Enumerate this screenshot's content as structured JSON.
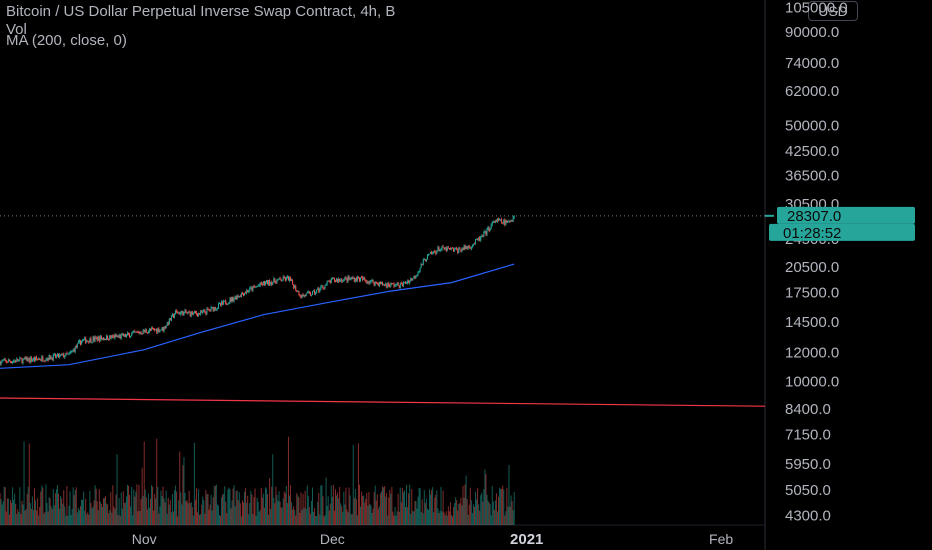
{
  "header": {
    "title": "Bitcoin / US Dollar Perpetual Inverse Swap Contract, 4h, B",
    "vol_label": "Vol",
    "ma_label": "MA (200, close, 0)"
  },
  "currency": "USD",
  "colors": {
    "background": "#000000",
    "up": "#26a69a",
    "down": "#ef5350",
    "ma": "#2962ff",
    "trendline": "#f23645",
    "price_tag": "#26a69a",
    "axis_text": "#b2b5be"
  },
  "chart_data": {
    "type": "candlestick",
    "price_scale": "log",
    "ylim": [
      4050,
      110000
    ],
    "y_ticks": [
      "105000.0",
      "90000.0",
      "74000.0",
      "62000.0",
      "50000.0",
      "42500.0",
      "36500.0",
      "30500.0",
      "24500.0",
      "20500.0",
      "17500.0",
      "14500.0",
      "12000.0",
      "10000.0",
      "8400.0",
      "7150.0",
      "5950.0",
      "5050.0",
      "4300.0"
    ],
    "x_ticks": [
      {
        "label": "Nov",
        "date": "2020-11-01",
        "bold": false
      },
      {
        "label": "Dec",
        "date": "2020-12-01",
        "bold": false
      },
      {
        "label": "2021",
        "date": "2021-01-01",
        "bold": true
      },
      {
        "label": "Feb",
        "date": "2021-02-01",
        "bold": false
      }
    ],
    "x_range": [
      "2020-10-09",
      "2021-02-08"
    ],
    "last_price": "28307.0",
    "countdown": "01:28:52",
    "price_path": [
      [
        "2020-10-09",
        11300
      ],
      [
        "2020-10-15",
        11500
      ],
      [
        "2020-10-20",
        11800
      ],
      [
        "2020-10-22",
        12900
      ],
      [
        "2020-10-25",
        13100
      ],
      [
        "2020-10-29",
        13300
      ],
      [
        "2020-11-01",
        13700
      ],
      [
        "2020-11-04",
        13900
      ],
      [
        "2020-11-06",
        15400
      ],
      [
        "2020-11-10",
        15300
      ],
      [
        "2020-11-13",
        16100
      ],
      [
        "2020-11-17",
        17500
      ],
      [
        "2020-11-20",
        18500
      ],
      [
        "2020-11-24",
        19100
      ],
      [
        "2020-11-26",
        17100
      ],
      [
        "2020-11-28",
        17400
      ],
      [
        "2020-12-01",
        18900
      ],
      [
        "2020-12-05",
        19100
      ],
      [
        "2020-12-09",
        18400
      ],
      [
        "2020-12-12",
        18300
      ],
      [
        "2020-12-14",
        19200
      ],
      [
        "2020-12-16",
        21800
      ],
      [
        "2020-12-18",
        23000
      ],
      [
        "2020-12-21",
        22800
      ],
      [
        "2020-12-23",
        23400
      ],
      [
        "2020-12-25",
        24900
      ],
      [
        "2020-12-27",
        27500
      ],
      [
        "2020-12-29",
        27000
      ],
      [
        "2020-12-30",
        28307
      ]
    ],
    "ma_path": [
      [
        "2020-10-09",
        10850
      ],
      [
        "2020-10-20",
        11100
      ],
      [
        "2020-11-01",
        12200
      ],
      [
        "2020-11-10",
        13600
      ],
      [
        "2020-11-20",
        15200
      ],
      [
        "2020-12-01",
        16500
      ],
      [
        "2020-12-10",
        17600
      ],
      [
        "2020-12-20",
        18600
      ],
      [
        "2020-12-30",
        20900
      ]
    ],
    "trendline": [
      [
        "2020-10-09",
        9000
      ],
      [
        "2021-02-08",
        8550
      ]
    ]
  }
}
